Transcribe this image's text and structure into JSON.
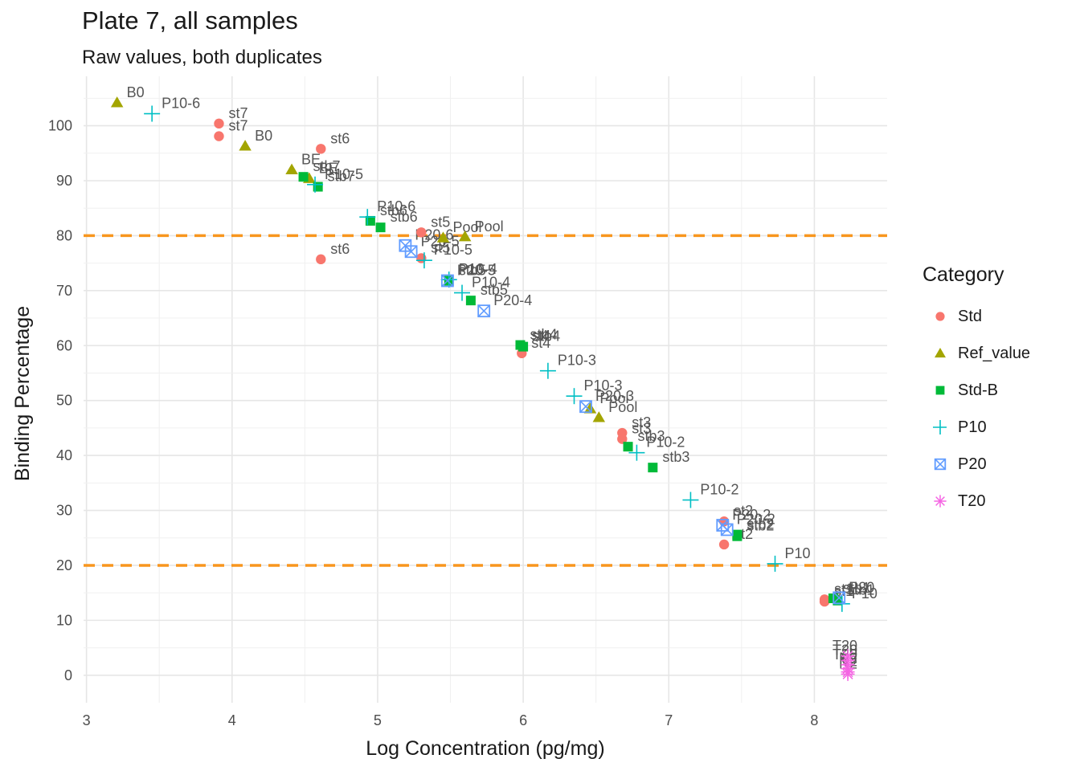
{
  "chart_data": {
    "type": "scatter",
    "title": "Plate 7, all samples",
    "subtitle": "Raw values, both duplicates",
    "xlabel": "Log Concentration (pg/mg)",
    "ylabel": "Binding Percentage",
    "xlim": [
      2.98,
      8.5
    ],
    "ylim": [
      -5,
      109
    ],
    "xticks": [
      3,
      4,
      5,
      6,
      7,
      8
    ],
    "yticks": [
      0,
      10,
      20,
      30,
      40,
      50,
      60,
      70,
      80,
      90,
      100
    ],
    "grid": true,
    "reference_lines": [
      {
        "y": 80,
        "color": "#f8961e",
        "style": "dashed"
      },
      {
        "y": 20,
        "color": "#f8961e",
        "style": "dashed"
      }
    ],
    "legend": {
      "title": "Category",
      "position": "right"
    },
    "series": [
      {
        "name": "Std",
        "color": "#f8766d",
        "shape": "circle",
        "points": [
          {
            "x": 3.91,
            "y": 100.4,
            "label": "st7"
          },
          {
            "x": 3.91,
            "y": 98.1,
            "label": "st7"
          },
          {
            "x": 4.61,
            "y": 95.8,
            "label": "st6"
          },
          {
            "x": 4.61,
            "y": 75.7,
            "label": "st6"
          },
          {
            "x": 5.3,
            "y": 80.6,
            "label": "st5"
          },
          {
            "x": 5.3,
            "y": 75.9,
            "label": "st5"
          },
          {
            "x": 5.99,
            "y": 59.9,
            "label": "st4"
          },
          {
            "x": 5.99,
            "y": 58.6,
            "label": "st4"
          },
          {
            "x": 6.68,
            "y": 44.1,
            "label": "st3"
          },
          {
            "x": 6.68,
            "y": 43.0,
            "label": "st3"
          },
          {
            "x": 7.38,
            "y": 28.0,
            "label": "st2"
          },
          {
            "x": 7.38,
            "y": 23.8,
            "label": "st2"
          },
          {
            "x": 8.07,
            "y": 13.8,
            "label": "st1"
          },
          {
            "x": 8.07,
            "y": 13.4,
            "label": "st1"
          }
        ]
      },
      {
        "name": "Ref_value",
        "color": "#a3a500",
        "shape": "triangle",
        "points": [
          {
            "x": 3.21,
            "y": 104.2,
            "label": "B0"
          },
          {
            "x": 4.09,
            "y": 96.3,
            "label": "B0"
          },
          {
            "x": 4.41,
            "y": 92.0,
            "label": "BE"
          },
          {
            "x": 4.53,
            "y": 90.4,
            "label": "BE"
          },
          {
            "x": 5.45,
            "y": 79.6,
            "label": "Pool"
          },
          {
            "x": 5.6,
            "y": 79.8,
            "label": "Pool"
          },
          {
            "x": 6.46,
            "y": 48.5,
            "label": "Pool"
          },
          {
            "x": 6.52,
            "y": 46.9,
            "label": "Pool"
          }
        ]
      },
      {
        "name": "Std-B",
        "color": "#00ba38",
        "shape": "square",
        "points": [
          {
            "x": 4.49,
            "y": 90.7,
            "label": "stb7"
          },
          {
            "x": 4.59,
            "y": 88.9,
            "label": "stb7"
          },
          {
            "x": 4.95,
            "y": 82.7,
            "label": "stb6"
          },
          {
            "x": 5.02,
            "y": 81.5,
            "label": "stb6"
          },
          {
            "x": 5.49,
            "y": 71.8,
            "label": "stb5"
          },
          {
            "x": 5.64,
            "y": 68.2,
            "label": "stb5"
          },
          {
            "x": 5.98,
            "y": 60.1,
            "label": "stb4"
          },
          {
            "x": 6.0,
            "y": 59.8,
            "label": "stb4"
          },
          {
            "x": 6.72,
            "y": 41.6,
            "label": "stb3"
          },
          {
            "x": 6.89,
            "y": 37.8,
            "label": "stb3"
          },
          {
            "x": 7.47,
            "y": 25.6,
            "label": "stb2"
          },
          {
            "x": 7.47,
            "y": 25.3,
            "label": "stb2"
          },
          {
            "x": 8.13,
            "y": 14.0,
            "label": "stb1"
          },
          {
            "x": 8.16,
            "y": 13.6,
            "label": "stb1"
          }
        ]
      },
      {
        "name": "P10",
        "color": "#00bfc4",
        "shape": "plus",
        "points": [
          {
            "x": 3.45,
            "y": 102.2,
            "label": "P10-6"
          },
          {
            "x": 4.57,
            "y": 89.3,
            "label": "P10-5"
          },
          {
            "x": 4.93,
            "y": 83.4,
            "label": "P10-6"
          },
          {
            "x": 5.32,
            "y": 75.5,
            "label": "P10-5"
          },
          {
            "x": 5.49,
            "y": 72.0,
            "label": "P10-4"
          },
          {
            "x": 5.58,
            "y": 69.6,
            "label": "P10-4"
          },
          {
            "x": 6.17,
            "y": 55.4,
            "label": "P10-3"
          },
          {
            "x": 6.35,
            "y": 50.8,
            "label": "P10-3"
          },
          {
            "x": 6.78,
            "y": 40.5,
            "label": "P10-2"
          },
          {
            "x": 7.15,
            "y": 31.9,
            "label": "P10-2"
          },
          {
            "x": 7.73,
            "y": 20.3,
            "label": "P10"
          },
          {
            "x": 8.19,
            "y": 13.0,
            "label": "P10"
          }
        ]
      },
      {
        "name": "P20",
        "color": "#619cff",
        "shape": "square-cross",
        "points": [
          {
            "x": 5.19,
            "y": 78.2,
            "label": "P20-6"
          },
          {
            "x": 5.23,
            "y": 77.1,
            "label": "P20-5"
          },
          {
            "x": 5.48,
            "y": 71.8,
            "label": "P20-5"
          },
          {
            "x": 5.73,
            "y": 66.3,
            "label": "P20-4"
          },
          {
            "x": 6.43,
            "y": 48.9,
            "label": "P20-3"
          },
          {
            "x": 7.37,
            "y": 27.3,
            "label": "P20-2"
          },
          {
            "x": 7.4,
            "y": 26.5,
            "label": "P20-2"
          },
          {
            "x": 8.17,
            "y": 14.1,
            "label": "P20"
          }
        ]
      },
      {
        "name": "T20",
        "color": "#f564e3",
        "shape": "asterisk",
        "points": [
          {
            "x": 8.23,
            "y": 3.5,
            "label": "T20"
          },
          {
            "x": 8.23,
            "y": 2.7,
            "label": "T20"
          },
          {
            "x": 8.23,
            "y": 1.9,
            "label": "T20"
          },
          {
            "x": 8.23,
            "y": 1.2,
            "label": "N2"
          },
          {
            "x": 8.23,
            "y": 0.6,
            "label": "N2"
          },
          {
            "x": 8.23,
            "y": 0.2,
            "label": "N2"
          }
        ]
      }
    ]
  }
}
